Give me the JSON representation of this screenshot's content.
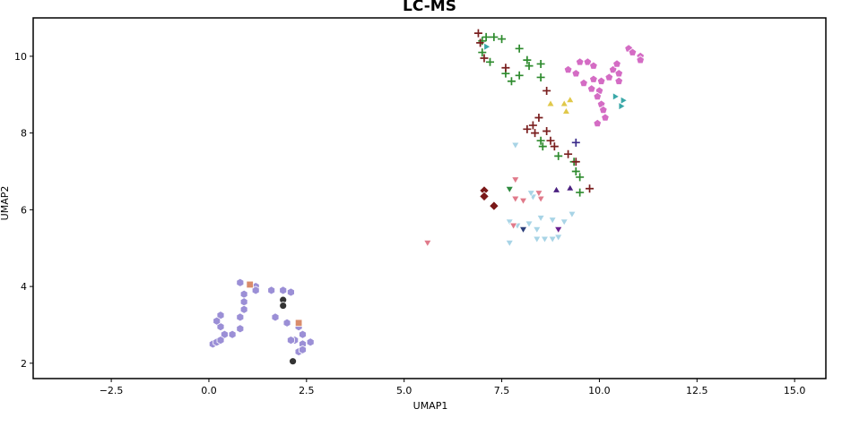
{
  "chart_data": {
    "type": "scatter",
    "title": "LC-MS",
    "xlabel": "UMAP1",
    "ylabel": "UMAP2",
    "xlim": [
      -4.5,
      15.8
    ],
    "ylim": [
      1.6,
      11.0
    ],
    "xticks": [
      -2.5,
      0.0,
      2.5,
      5.0,
      7.5,
      10.0,
      12.5,
      15.0
    ],
    "xtick_labels": [
      "−2.5",
      "0.0",
      "2.5",
      "5.0",
      "7.5",
      "10.0",
      "12.5",
      "15.0"
    ],
    "yticks": [
      2,
      4,
      6,
      8,
      10
    ],
    "ytick_labels": [
      "2",
      "4",
      "6",
      "8",
      "10"
    ],
    "grid": false,
    "legend": "none",
    "series": [
      {
        "marker": "hexagon",
        "color": "#9b8fd6",
        "points": [
          [
            0.8,
            4.1
          ],
          [
            1.2,
            4.0
          ],
          [
            1.2,
            3.9
          ],
          [
            0.9,
            3.8
          ],
          [
            0.9,
            3.6
          ],
          [
            0.9,
            3.4
          ],
          [
            0.8,
            3.2
          ],
          [
            0.8,
            2.9
          ],
          [
            0.6,
            2.75
          ],
          [
            0.4,
            2.75
          ],
          [
            0.3,
            2.95
          ],
          [
            0.3,
            3.25
          ],
          [
            0.2,
            3.1
          ],
          [
            0.1,
            2.5
          ],
          [
            0.2,
            2.55
          ],
          [
            0.3,
            2.6
          ],
          [
            1.6,
            3.9
          ],
          [
            1.9,
            3.9
          ],
          [
            2.1,
            3.85
          ],
          [
            1.7,
            3.2
          ],
          [
            2.0,
            3.05
          ],
          [
            2.3,
            2.95
          ],
          [
            2.4,
            2.75
          ],
          [
            2.2,
            2.6
          ],
          [
            2.4,
            2.5
          ],
          [
            2.6,
            2.55
          ],
          [
            2.3,
            2.3
          ],
          [
            2.4,
            2.35
          ],
          [
            2.1,
            2.6
          ]
        ]
      },
      {
        "marker": "circle",
        "color": "#333333",
        "points": [
          [
            1.9,
            3.65
          ],
          [
            1.9,
            3.5
          ],
          [
            2.15,
            2.05
          ]
        ]
      },
      {
        "marker": "square",
        "color": "#d98c6c",
        "points": [
          [
            1.05,
            4.05
          ],
          [
            2.3,
            3.05
          ]
        ]
      },
      {
        "marker": "plus",
        "color": "#2e8b2e",
        "points": [
          [
            7.0,
            10.4
          ],
          [
            7.1,
            10.5
          ],
          [
            7.3,
            10.5
          ],
          [
            7.5,
            10.45
          ],
          [
            7.0,
            10.1
          ],
          [
            7.2,
            9.85
          ],
          [
            7.6,
            9.55
          ],
          [
            7.75,
            9.35
          ],
          [
            7.95,
            9.5
          ],
          [
            7.95,
            10.2
          ],
          [
            8.15,
            9.9
          ],
          [
            8.2,
            9.75
          ],
          [
            8.5,
            9.8
          ],
          [
            8.5,
            9.45
          ],
          [
            8.5,
            7.8
          ],
          [
            8.55,
            7.65
          ],
          [
            8.95,
            7.4
          ],
          [
            9.35,
            7.25
          ],
          [
            9.4,
            7.0
          ],
          [
            9.5,
            6.85
          ],
          [
            9.5,
            6.45
          ]
        ]
      },
      {
        "marker": "plus",
        "color": "#7a1f1f",
        "points": [
          [
            6.9,
            10.6
          ],
          [
            6.95,
            10.35
          ],
          [
            7.05,
            9.95
          ],
          [
            7.6,
            9.7
          ],
          [
            8.65,
            9.1
          ],
          [
            8.45,
            8.4
          ],
          [
            8.3,
            8.2
          ],
          [
            8.15,
            8.1
          ],
          [
            8.35,
            8.0
          ],
          [
            8.65,
            8.05
          ],
          [
            8.75,
            7.8
          ],
          [
            8.85,
            7.65
          ],
          [
            9.2,
            7.45
          ],
          [
            9.4,
            7.25
          ],
          [
            9.75,
            6.55
          ]
        ]
      },
      {
        "marker": "plus",
        "color": "#3a2a8a",
        "points": [
          [
            9.4,
            7.75
          ]
        ]
      },
      {
        "marker": "pentagon",
        "color": "#d46cc4",
        "points": [
          [
            9.2,
            9.65
          ],
          [
            9.4,
            9.55
          ],
          [
            9.5,
            9.85
          ],
          [
            9.6,
            9.3
          ],
          [
            9.7,
            9.85
          ],
          [
            9.85,
            9.75
          ],
          [
            9.85,
            9.4
          ],
          [
            10.05,
            9.35
          ],
          [
            9.8,
            9.15
          ],
          [
            10.0,
            9.1
          ],
          [
            10.25,
            9.45
          ],
          [
            10.35,
            9.65
          ],
          [
            10.45,
            9.8
          ],
          [
            10.5,
            9.55
          ],
          [
            10.5,
            9.35
          ],
          [
            9.95,
            8.95
          ],
          [
            10.05,
            8.75
          ],
          [
            10.1,
            8.6
          ],
          [
            10.15,
            8.4
          ],
          [
            9.95,
            8.25
          ],
          [
            10.75,
            10.2
          ],
          [
            10.85,
            10.1
          ],
          [
            11.05,
            10.0
          ],
          [
            11.05,
            9.9
          ]
        ]
      },
      {
        "marker": "triangle-right",
        "color": "#3aa8a8",
        "points": [
          [
            10.4,
            8.95
          ],
          [
            10.6,
            8.85
          ],
          [
            10.55,
            8.7
          ],
          [
            7.1,
            10.25
          ]
        ]
      },
      {
        "marker": "triangle-up",
        "color": "#e0c84a",
        "points": [
          [
            8.75,
            8.75
          ],
          [
            9.1,
            8.75
          ],
          [
            9.25,
            8.85
          ],
          [
            9.15,
            8.55
          ]
        ]
      },
      {
        "marker": "triangle-up",
        "color": "#4a2080",
        "points": [
          [
            8.9,
            6.5
          ],
          [
            9.25,
            6.55
          ]
        ]
      },
      {
        "marker": "triangle-down",
        "color": "#a8d4e6",
        "points": [
          [
            7.85,
            7.7
          ],
          [
            7.7,
            5.7
          ],
          [
            7.9,
            5.6
          ],
          [
            8.2,
            5.65
          ],
          [
            8.5,
            5.8
          ],
          [
            8.8,
            5.75
          ],
          [
            9.1,
            5.7
          ],
          [
            9.3,
            5.9
          ],
          [
            8.4,
            5.5
          ],
          [
            8.6,
            5.25
          ],
          [
            8.4,
            5.25
          ],
          [
            8.8,
            5.25
          ],
          [
            8.95,
            5.3
          ],
          [
            7.7,
            5.15
          ],
          [
            8.3,
            6.35
          ],
          [
            8.25,
            6.45
          ]
        ]
      },
      {
        "marker": "triangle-down",
        "color": "#e07a8a",
        "points": [
          [
            5.6,
            5.15
          ],
          [
            7.85,
            6.8
          ],
          [
            7.85,
            6.3
          ],
          [
            8.05,
            6.25
          ],
          [
            8.5,
            6.3
          ],
          [
            8.45,
            6.45
          ],
          [
            7.8,
            5.6
          ]
        ]
      },
      {
        "marker": "triangle-down",
        "color": "#2d8a3e",
        "points": [
          [
            7.7,
            6.55
          ]
        ]
      },
      {
        "marker": "triangle-down",
        "color": "#2b3f7a",
        "points": [
          [
            8.05,
            5.5
          ]
        ]
      },
      {
        "marker": "triangle-down",
        "color": "#6a2090",
        "points": [
          [
            8.95,
            5.5
          ]
        ]
      },
      {
        "marker": "diamond",
        "color": "#7a1818",
        "points": [
          [
            7.05,
            6.5
          ],
          [
            7.05,
            6.35
          ],
          [
            7.3,
            6.1
          ]
        ]
      }
    ]
  }
}
